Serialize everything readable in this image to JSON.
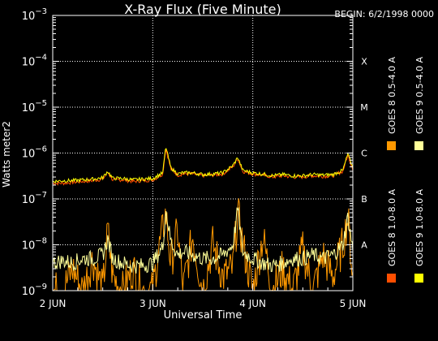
{
  "chart_data": {
    "type": "line",
    "title": "X-Ray Flux (Five Minute)",
    "begin_label": "BEGIN: 6/2/1998 0000",
    "xlabel": "Universal Time",
    "ylabel": "Watts meter2",
    "y_scale": "log",
    "ylim": [
      1e-09,
      0.001
    ],
    "y_ticks": [
      {
        "value": 0.001,
        "base": "10",
        "exp": "−3"
      },
      {
        "value": 0.0001,
        "base": "10",
        "exp": "−4"
      },
      {
        "value": 1e-05,
        "base": "10",
        "exp": "−5"
      },
      {
        "value": 1e-06,
        "base": "10",
        "exp": "−6"
      },
      {
        "value": 1e-07,
        "base": "10",
        "exp": "−7"
      },
      {
        "value": 1e-08,
        "base": "10",
        "exp": "−8"
      },
      {
        "value": 1e-09,
        "base": "10",
        "exp": "−9"
      }
    ],
    "x_ticks": [
      {
        "value": 0,
        "label": "2 JUN"
      },
      {
        "value": 1,
        "label": "3 JUN"
      },
      {
        "value": 2,
        "label": "4 JUN"
      },
      {
        "value": 3,
        "label": "5 JUN"
      }
    ],
    "xlim": [
      0,
      3
    ],
    "flare_classes": [
      {
        "label": "X",
        "value": 0.0001
      },
      {
        "label": "M",
        "value": 1e-05
      },
      {
        "label": "C",
        "value": 1e-06
      },
      {
        "label": "B",
        "value": 1e-07
      },
      {
        "label": "A",
        "value": 1e-08
      }
    ],
    "grid": "dotted at decades 1e-8 to 1e-4 and day boundaries",
    "legend_position": "right, vertical",
    "series": [
      {
        "name": "GOES 8 1.0-8.0 A",
        "color": "#ff4e00",
        "x": [
          0,
          0.1,
          0.2,
          0.3,
          0.4,
          0.5,
          0.55,
          0.6,
          0.7,
          0.8,
          0.9,
          1.0,
          1.05,
          1.1,
          1.13,
          1.18,
          1.25,
          1.3,
          1.4,
          1.5,
          1.6,
          1.7,
          1.8,
          1.85,
          1.9,
          2.0,
          2.1,
          2.2,
          2.3,
          2.4,
          2.5,
          2.6,
          2.7,
          2.8,
          2.9,
          2.95,
          3.0
        ],
        "values": [
          2.2e-07,
          2.2e-07,
          2.3e-07,
          2.4e-07,
          2.5e-07,
          2.7e-07,
          3.8e-07,
          2.6e-07,
          2.6e-07,
          2.4e-07,
          2.5e-07,
          2.6e-07,
          3e-07,
          3.5e-07,
          1.3e-06,
          4.5e-07,
          3.3e-07,
          3.5e-07,
          3.5e-07,
          3.2e-07,
          3.3e-07,
          3.5e-07,
          5e-07,
          7.5e-07,
          4e-07,
          3.5e-07,
          3.3e-07,
          3e-07,
          3.2e-07,
          3e-07,
          3e-07,
          3.2e-07,
          3.1e-07,
          3.2e-07,
          4e-07,
          9e-07,
          4.5e-07
        ]
      },
      {
        "name": "GOES 8 0.5-4.0 A",
        "color": "#ff9900",
        "x": [
          0,
          0.1,
          0.2,
          0.3,
          0.4,
          0.5,
          0.55,
          0.6,
          0.7,
          0.8,
          0.9,
          1.0,
          1.05,
          1.1,
          1.13,
          1.18,
          1.25,
          1.3,
          1.4,
          1.5,
          1.6,
          1.7,
          1.8,
          1.85,
          1.9,
          2.0,
          2.1,
          2.2,
          2.3,
          2.4,
          2.5,
          2.6,
          2.7,
          2.8,
          2.9,
          2.95,
          3.0
        ],
        "values": [
          1e-09,
          1e-09,
          3e-09,
          1e-09,
          5e-09,
          1e-09,
          2e-08,
          2e-09,
          1e-09,
          3e-09,
          1e-09,
          1e-09,
          6e-09,
          2e-08,
          5e-08,
          4e-09,
          2e-08,
          1e-09,
          1.5e-08,
          1e-09,
          1e-08,
          2e-09,
          3e-09,
          5e-08,
          1e-08,
          1e-09,
          1.5e-08,
          1e-09,
          3e-09,
          1e-09,
          8e-09,
          1e-09,
          6e-09,
          2e-09,
          1e-08,
          4e-08,
          2e-09
        ]
      },
      {
        "name": "GOES 9 1.0-8.0 A",
        "color": "#ffff00",
        "x": [
          0,
          0.1,
          0.2,
          0.3,
          0.4,
          0.5,
          0.55,
          0.6,
          0.7,
          0.8,
          0.9,
          1.0,
          1.05,
          1.1,
          1.13,
          1.18,
          1.25,
          1.3,
          1.4,
          1.5,
          1.6,
          1.7,
          1.8,
          1.85,
          1.9,
          2.0,
          2.1,
          2.2,
          2.3,
          2.4,
          2.5,
          2.6,
          2.7,
          2.8,
          2.9,
          2.95,
          3.0
        ],
        "values": [
          2.4e-07,
          2.5e-07,
          2.5e-07,
          2.6e-07,
          2.7e-07,
          2.9e-07,
          4e-07,
          2.8e-07,
          2.8e-07,
          2.6e-07,
          2.7e-07,
          2.8e-07,
          3.2e-07,
          3.7e-07,
          1.4e-06,
          4.8e-07,
          3.5e-07,
          3.7e-07,
          3.7e-07,
          3.4e-07,
          3.5e-07,
          3.7e-07,
          5.3e-07,
          8e-07,
          4.2e-07,
          3.7e-07,
          3.5e-07,
          3.2e-07,
          3.4e-07,
          3.2e-07,
          3.2e-07,
          3.4e-07,
          3.3e-07,
          3.4e-07,
          4.2e-07,
          9.5e-07,
          4.8e-07
        ]
      },
      {
        "name": "GOES 9 0.5-4.0 A",
        "color": "#ffff99",
        "x": [
          0,
          0.1,
          0.2,
          0.3,
          0.4,
          0.5,
          0.55,
          0.6,
          0.7,
          0.8,
          0.9,
          1.0,
          1.05,
          1.1,
          1.13,
          1.18,
          1.25,
          1.3,
          1.4,
          1.5,
          1.6,
          1.7,
          1.8,
          1.85,
          1.9,
          2.0,
          2.1,
          2.2,
          2.3,
          2.4,
          2.5,
          2.6,
          2.7,
          2.8,
          2.9,
          2.95,
          3.0
        ],
        "values": [
          4e-09,
          4.5e-09,
          4e-09,
          5e-09,
          5e-09,
          6e-09,
          1.3e-08,
          5e-09,
          4e-09,
          3.5e-09,
          3.5e-09,
          4e-09,
          6e-09,
          9e-09,
          6e-08,
          1.2e-08,
          6e-09,
          7e-09,
          6e-09,
          5e-09,
          5e-09,
          6e-09,
          1e-08,
          6e-08,
          7e-09,
          5e-09,
          4e-09,
          3.5e-09,
          4e-09,
          5e-09,
          5e-09,
          6e-09,
          5e-09,
          6e-09,
          1e-08,
          4e-08,
          8e-09
        ]
      }
    ]
  }
}
